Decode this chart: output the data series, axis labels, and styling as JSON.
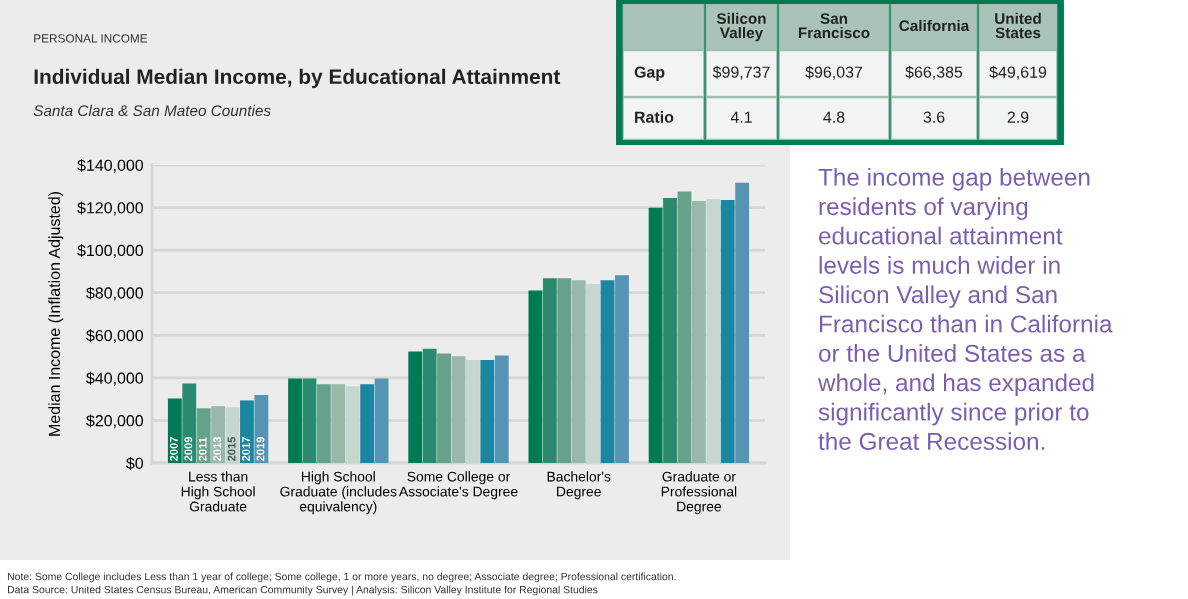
{
  "chart_data": [
    {
      "type": "bar",
      "title": "Individual Median Income, by Educational Attainment",
      "subtitle": "Santa Clara & San Mateo Counties",
      "ylabel": "Median Income (Inflation Adjusted)",
      "annotations": [
        "PERSONAL INCOME",
        "Note: Some College includes Less than 1 year of college; Some college, 1 or more years, no degree; Associate degree; Professional certification.",
        "Data Source: United States Census Bureau, American Community Survey | Analysis: Silicon Valley Institute for Regional Studies"
      ],
      "categories": [
        "Less than\nHigh School\nGraduate",
        "High School\nGraduate (includes\nequivalency)",
        "Some College or\nAssociate's Degree",
        "Bachelor's\nDegree",
        "Graduate or\nProfessional\nDegree"
      ],
      "series": [
        {
          "name": "2007",
          "color": "#007a53",
          "values": [
            30300,
            39700,
            52400,
            81000,
            119900
          ]
        },
        {
          "name": "2009",
          "color": "#2a8a6e",
          "values": [
            37400,
            39700,
            53700,
            86800,
            124500
          ]
        },
        {
          "name": "2011",
          "color": "#66a18a",
          "values": [
            25700,
            37000,
            51500,
            86800,
            127600
          ]
        },
        {
          "name": "2013",
          "color": "#98b9aa",
          "values": [
            26700,
            37000,
            50100,
            85900,
            123100
          ]
        },
        {
          "name": "2015",
          "color": "#c5d7cf",
          "values": [
            26200,
            36000,
            48400,
            84100,
            124000
          ]
        },
        {
          "name": "2017",
          "color": "#1a86a2",
          "values": [
            29400,
            37000,
            48400,
            85900,
            123500
          ]
        },
        {
          "name": "2019",
          "color": "#5595b3",
          "values": [
            32000,
            39700,
            50500,
            88200,
            131700
          ]
        }
      ],
      "ylim": [
        0,
        140000
      ],
      "yticks": [
        {
          "value": 0,
          "label": "$0"
        },
        {
          "value": 20000,
          "label": "$20,000"
        },
        {
          "value": 40000,
          "label": "$40,000"
        },
        {
          "value": 60000,
          "label": "$60,000"
        },
        {
          "value": 80000,
          "label": "$80,000"
        },
        {
          "value": 100000,
          "label": "$100,000"
        },
        {
          "value": 120000,
          "label": "$120,000"
        },
        {
          "value": 140000,
          "label": "$140,000"
        }
      ],
      "grid": "y"
    },
    {
      "type": "other",
      "annotations": [
        "Silicon\nValley",
        "San\nFrancisco",
        "California",
        "United\nStates",
        "Gap",
        "$99,737",
        "$96,037",
        "$66,385",
        "$49,619",
        "Ratio",
        "4.1",
        "4.8",
        "3.6",
        "2.9",
        "The income gap between\nresidents of varying\neducational attainment\nlevels is much wider in\nSilicon Valley and San\nFrancisco than in California\nor the United States as a\nwhole, and has expanded\nsignificantly since prior to\nthe Great Recession."
      ]
    }
  ]
}
